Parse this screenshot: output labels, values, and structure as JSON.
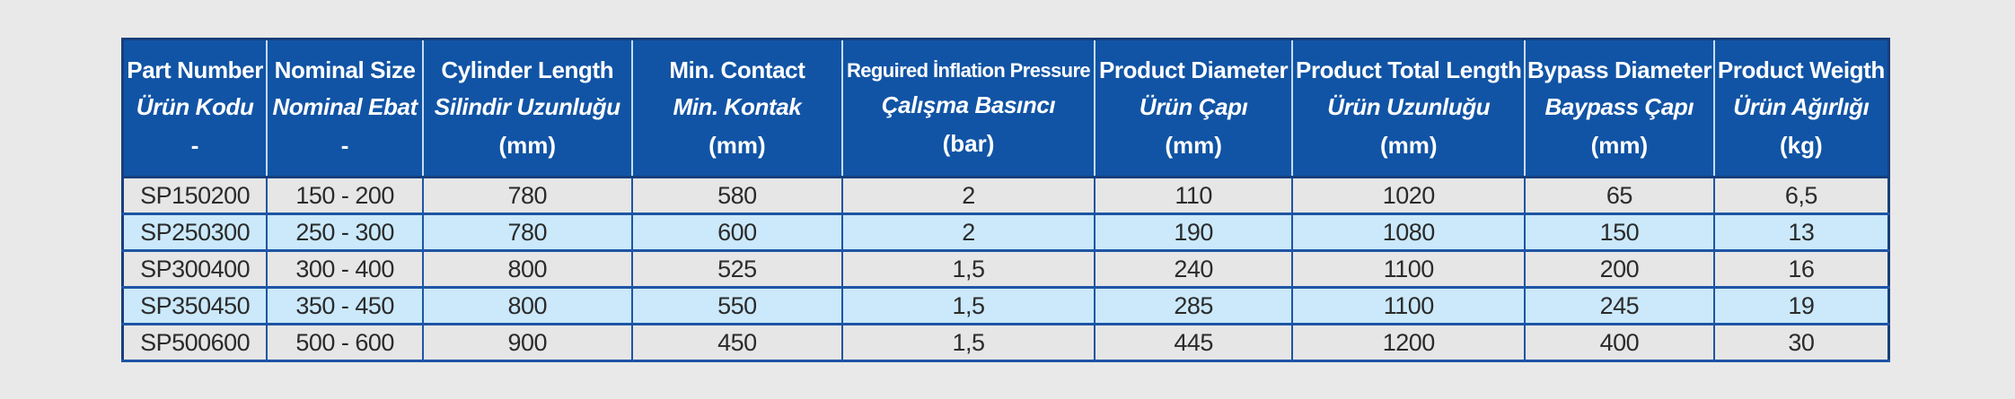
{
  "colors": {
    "page_bg": "#e9e9e9",
    "header_bg": "#1154a5",
    "header_text": "#ffffff",
    "outer_border": "#173f7c",
    "grid_border": "#1e55a4",
    "header_divider": "#c7dcf0",
    "row_bg": "#e6e6e6",
    "row_alt_bg": "#cbe9fb",
    "body_text": "#2b2b2b"
  },
  "table": {
    "columns": [
      {
        "en": "Part Number",
        "tr": "Ürün Kodu",
        "unit": "-"
      },
      {
        "en": "Nominal Size",
        "tr": "Nominal Ebat",
        "unit": "-"
      },
      {
        "en": "Cylinder Length",
        "tr": "Silindir Uzunluğu",
        "unit": "(mm)"
      },
      {
        "en": "Min. Contact",
        "tr": "Min. Kontak",
        "unit": "(mm)"
      },
      {
        "en": "Reguired İnflation Pressure",
        "tr": "Çalışma Basıncı",
        "unit": "(bar)"
      },
      {
        "en": "Product Diameter",
        "tr": "Ürün Çapı",
        "unit": "(mm)"
      },
      {
        "en": "Product Total Length",
        "tr": "Ürün Uzunluğu",
        "unit": "(mm)"
      },
      {
        "en": "Bypass Diameter",
        "tr": "Baypass Çapı",
        "unit": "(mm)"
      },
      {
        "en": "Product Weigth",
        "tr": "Ürün Ağırlığı",
        "unit": "(kg)"
      }
    ],
    "rows": [
      [
        "SP150200",
        "150 - 200",
        "780",
        "580",
        "2",
        "110",
        "1020",
        "65",
        "6,5"
      ],
      [
        "SP250300",
        "250 - 300",
        "780",
        "600",
        "2",
        "190",
        "1080",
        "150",
        "13"
      ],
      [
        "SP300400",
        "300 - 400",
        "800",
        "525",
        "1,5",
        "240",
        "1100",
        "200",
        "16"
      ],
      [
        "SP350450",
        "350 - 450",
        "800",
        "550",
        "1,5",
        "285",
        "1100",
        "245",
        "19"
      ],
      [
        "SP500600",
        "500 - 600",
        "900",
        "450",
        "1,5",
        "445",
        "1200",
        "400",
        "30"
      ]
    ]
  }
}
